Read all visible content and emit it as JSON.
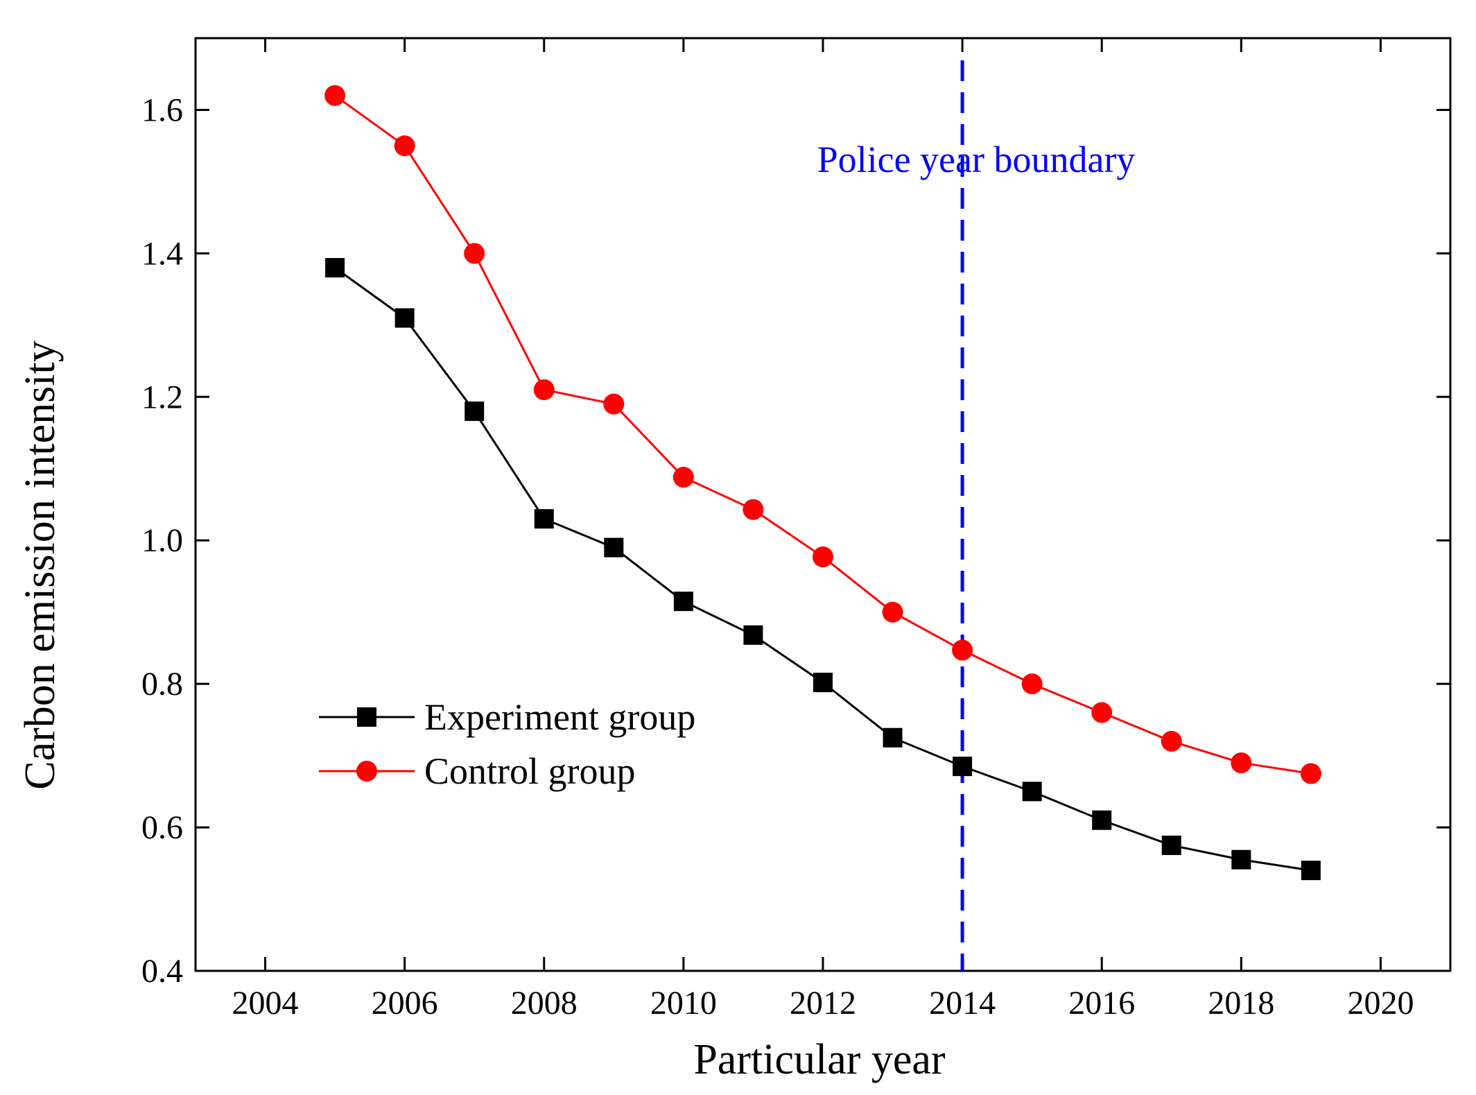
{
  "chart_data": {
    "type": "line",
    "xlabel": "Particular year",
    "ylabel": "Carbon emission intensity",
    "xlim": [
      2003,
      2021
    ],
    "ylim": [
      0.4,
      1.7
    ],
    "xticks": [
      2004,
      2006,
      2008,
      2010,
      2012,
      2014,
      2016,
      2018,
      2020
    ],
    "yticks": [
      0.4,
      0.6,
      0.8,
      1.0,
      1.2,
      1.4,
      1.6
    ],
    "xtick_labels": [
      "2004",
      "2006",
      "2008",
      "2010",
      "2012",
      "2014",
      "2016",
      "2018",
      "2020"
    ],
    "ytick_labels": [
      "0.4",
      "0.6",
      "0.8",
      "1.0",
      "1.2",
      "1.4",
      "1.6"
    ],
    "x": [
      2005,
      2006,
      2007,
      2008,
      2009,
      2010,
      2011,
      2012,
      2013,
      2014,
      2015,
      2016,
      2017,
      2018,
      2019
    ],
    "series": [
      {
        "name": "Experiment group",
        "color": "#000000",
        "marker": "square",
        "values": [
          1.38,
          1.31,
          1.18,
          1.03,
          0.99,
          0.915,
          0.868,
          0.802,
          0.725,
          0.685,
          0.65,
          0.61,
          0.575,
          0.555,
          0.54
        ]
      },
      {
        "name": "Control group",
        "color": "#ff0000",
        "marker": "circle",
        "values": [
          1.62,
          1.55,
          1.4,
          1.21,
          1.19,
          1.088,
          1.043,
          0.977,
          0.9,
          0.847,
          0.8,
          0.76,
          0.72,
          0.69,
          0.675
        ]
      }
    ],
    "annotations": [
      {
        "x": 2014,
        "text": "Police year boundary",
        "color": "#0000ff",
        "style": "dashed-vertical-line"
      }
    ],
    "legend_position": "lower-left"
  }
}
